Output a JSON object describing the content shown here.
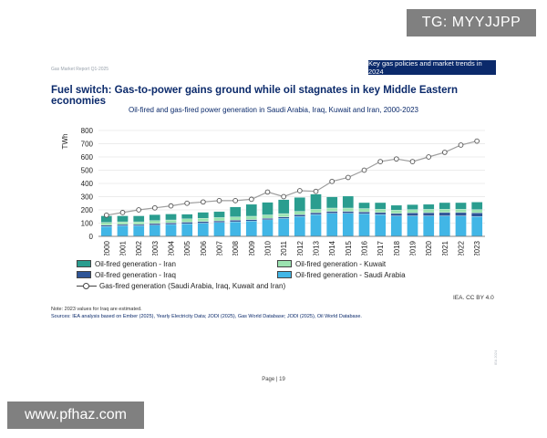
{
  "header": {
    "report_label": "Gas Market Report Q1-2025",
    "section_badge": "Key gas policies and market trends in 2024"
  },
  "page_title": "Fuel switch: Gas-to-power gains ground while oil stagnates in key Middle Eastern economies",
  "colors": {
    "oil_iran": "#2a9d8f",
    "oil_iraq": "#2f5597",
    "oil_kuwait": "#9be3b0",
    "oil_saudi": "#41b6e6",
    "gas_line": "#9e9e9e"
  },
  "chart_data": {
    "type": "bar",
    "title": "Oil-fired and gas-fired power generation in Saudi Arabia, Iraq, Kuwait and Iran, 2000-2023",
    "ylabel": "TWh",
    "xlabel": "",
    "ylim": [
      0,
      800
    ],
    "yticks": [
      "0",
      "100",
      "200",
      "300",
      "400",
      "500",
      "600",
      "700",
      "800"
    ],
    "grid": true,
    "categories": [
      "2000",
      "2001",
      "2002",
      "2003",
      "2004",
      "2005",
      "2006",
      "2007",
      "2008",
      "2009",
      "2010",
      "2011",
      "2012",
      "2013",
      "2014",
      "2015",
      "2016",
      "2017",
      "2018",
      "2019",
      "2020",
      "2021",
      "2022",
      "2023"
    ],
    "stacked": true,
    "series": [
      {
        "name": "Oil-fired generation - Saudi Arabia",
        "key": "oil_saudi",
        "values": [
          75,
          80,
          80,
          85,
          90,
          95,
          100,
          105,
          110,
          115,
          125,
          135,
          150,
          165,
          175,
          175,
          170,
          165,
          155,
          155,
          155,
          155,
          155,
          150
        ]
      },
      {
        "name": "Oil-fired generation - Iraq",
        "key": "oil_iraq",
        "values": [
          10,
          10,
          10,
          12,
          12,
          12,
          12,
          12,
          12,
          12,
          12,
          12,
          14,
          14,
          14,
          14,
          15,
          15,
          18,
          22,
          24,
          25,
          25,
          27
        ]
      },
      {
        "name": "Oil-fired generation - Kuwait",
        "key": "oil_kuwait",
        "values": [
          20,
          20,
          20,
          22,
          22,
          25,
          25,
          25,
          25,
          25,
          25,
          25,
          25,
          25,
          25,
          25,
          25,
          25,
          25,
          25,
          25,
          25,
          25,
          25
        ]
      },
      {
        "name": "Oil-fired generation - Iran",
        "key": "oil_iran",
        "values": [
          50,
          45,
          45,
          45,
          45,
          35,
          45,
          45,
          75,
          90,
          95,
          105,
          105,
          115,
          85,
          90,
          45,
          50,
          37,
          38,
          38,
          50,
          50,
          57
        ]
      }
    ],
    "line_series": {
      "name": "Gas-fired generation (Saudi Arabia, Iraq, Kuwait and Iran)",
      "key": "gas_line",
      "values": [
        160,
        180,
        200,
        215,
        230,
        250,
        260,
        270,
        270,
        280,
        335,
        300,
        345,
        340,
        415,
        445,
        500,
        565,
        585,
        565,
        600,
        635,
        690,
        720
      ]
    }
  },
  "legend_rows": [
    [
      "Oil-fired generation - Iran",
      "Oil-fired generation - Kuwait"
    ],
    [
      "Oil-fired generation - Iraq",
      "Oil-fired generation - Saudi Arabia"
    ],
    [
      "Gas-fired generation (Saudi Arabia, Iraq, Kuwait and Iran)"
    ]
  ],
  "credit": "IEA. CC BY 4.0",
  "note": "Note: 2023 values for Iraq are estimated.",
  "sources": "Sources: IEA analysis based on Ember (2025), Yearly Electricity Data; JODI (2025), Gas World Database; JODI (2025), Oil World Database.",
  "page_number": "Page | 19",
  "side_code": "IEA 2024",
  "watermarks": {
    "top_right": "TG: MYYJJPP",
    "bottom_left": "www.pfhaz.com"
  }
}
